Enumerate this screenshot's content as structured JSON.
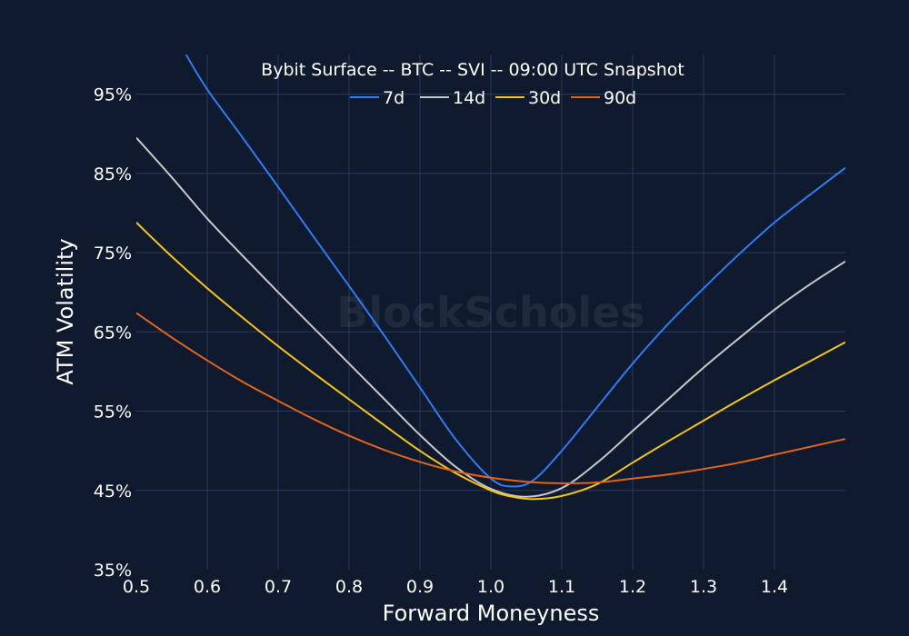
{
  "chart_data": {
    "type": "line",
    "title": "Bybit Surface -- BTC -- SVI -- 09:00 UTC Snapshot",
    "xlabel": "Forward Moneyness",
    "ylabel": "ATM Volatility",
    "xlim": [
      0.5,
      1.5
    ],
    "ylim": [
      35,
      100
    ],
    "x_ticks": [
      0.5,
      0.6,
      0.7,
      0.8,
      0.9,
      1.0,
      1.1,
      1.2,
      1.3,
      1.4
    ],
    "x_tick_labels": [
      "0.5",
      "0.6",
      "0.7",
      "0.8",
      "0.9",
      "1.0",
      "1.1",
      "1.2",
      "1.3",
      "1.4"
    ],
    "y_ticks": [
      35,
      45,
      55,
      65,
      75,
      85,
      95
    ],
    "y_tick_labels": [
      "35%",
      "45%",
      "55%",
      "65%",
      "75%",
      "85%",
      "95%"
    ],
    "grid": true,
    "legend_position": "top-center",
    "watermark": "BlockScholes",
    "background_color": "#0f1a2e",
    "series": [
      {
        "name": "7d",
        "color": "#2f7bf5",
        "points": [
          [
            0.57,
            100
          ],
          [
            0.6,
            95.6
          ],
          [
            0.65,
            89.5
          ],
          [
            0.7,
            83.3
          ],
          [
            0.75,
            77.0
          ],
          [
            0.8,
            70.8
          ],
          [
            0.85,
            64.5
          ],
          [
            0.9,
            58.0
          ],
          [
            0.95,
            51.5
          ],
          [
            1.0,
            46.5
          ],
          [
            1.03,
            45.5
          ],
          [
            1.06,
            46.3
          ],
          [
            1.1,
            50.0
          ],
          [
            1.15,
            55.5
          ],
          [
            1.2,
            61.0
          ],
          [
            1.25,
            66.0
          ],
          [
            1.3,
            70.5
          ],
          [
            1.35,
            74.8
          ],
          [
            1.4,
            78.8
          ],
          [
            1.45,
            82.3
          ],
          [
            1.5,
            85.7
          ]
        ]
      },
      {
        "name": "14d",
        "color": "#c8c8c8",
        "points": [
          [
            0.5,
            89.5
          ],
          [
            0.55,
            84.5
          ],
          [
            0.6,
            79.3
          ],
          [
            0.65,
            74.6
          ],
          [
            0.7,
            70.0
          ],
          [
            0.75,
            65.5
          ],
          [
            0.8,
            61.0
          ],
          [
            0.85,
            56.5
          ],
          [
            0.9,
            52.0
          ],
          [
            0.95,
            48.0
          ],
          [
            1.0,
            45.2
          ],
          [
            1.05,
            44.2
          ],
          [
            1.1,
            45.3
          ],
          [
            1.15,
            48.5
          ],
          [
            1.2,
            52.5
          ],
          [
            1.25,
            56.5
          ],
          [
            1.3,
            60.5
          ],
          [
            1.35,
            64.2
          ],
          [
            1.4,
            67.8
          ],
          [
            1.45,
            71.0
          ],
          [
            1.5,
            73.9
          ]
        ]
      },
      {
        "name": "30d",
        "color": "#f5c518",
        "points": [
          [
            0.5,
            78.8
          ],
          [
            0.55,
            74.5
          ],
          [
            0.6,
            70.5
          ],
          [
            0.65,
            66.8
          ],
          [
            0.7,
            63.2
          ],
          [
            0.75,
            59.8
          ],
          [
            0.8,
            56.5
          ],
          [
            0.85,
            53.2
          ],
          [
            0.9,
            50.0
          ],
          [
            0.95,
            47.2
          ],
          [
            1.0,
            45.0
          ],
          [
            1.03,
            44.2
          ],
          [
            1.06,
            43.9
          ],
          [
            1.1,
            44.3
          ],
          [
            1.15,
            45.8
          ],
          [
            1.2,
            48.5
          ],
          [
            1.25,
            51.2
          ],
          [
            1.3,
            53.8
          ],
          [
            1.35,
            56.4
          ],
          [
            1.4,
            58.9
          ],
          [
            1.45,
            61.3
          ],
          [
            1.5,
            63.7
          ]
        ]
      },
      {
        "name": "90d",
        "color": "#e0651a",
        "points": [
          [
            0.5,
            67.4
          ],
          [
            0.55,
            64.3
          ],
          [
            0.6,
            61.4
          ],
          [
            0.65,
            58.7
          ],
          [
            0.7,
            56.3
          ],
          [
            0.75,
            54.0
          ],
          [
            0.8,
            51.9
          ],
          [
            0.85,
            50.1
          ],
          [
            0.9,
            48.6
          ],
          [
            0.95,
            47.4
          ],
          [
            1.0,
            46.6
          ],
          [
            1.05,
            46.1
          ],
          [
            1.1,
            45.9
          ],
          [
            1.15,
            46.0
          ],
          [
            1.2,
            46.5
          ],
          [
            1.25,
            47.0
          ],
          [
            1.3,
            47.7
          ],
          [
            1.35,
            48.5
          ],
          [
            1.4,
            49.5
          ],
          [
            1.45,
            50.5
          ],
          [
            1.5,
            51.5
          ]
        ]
      }
    ]
  }
}
